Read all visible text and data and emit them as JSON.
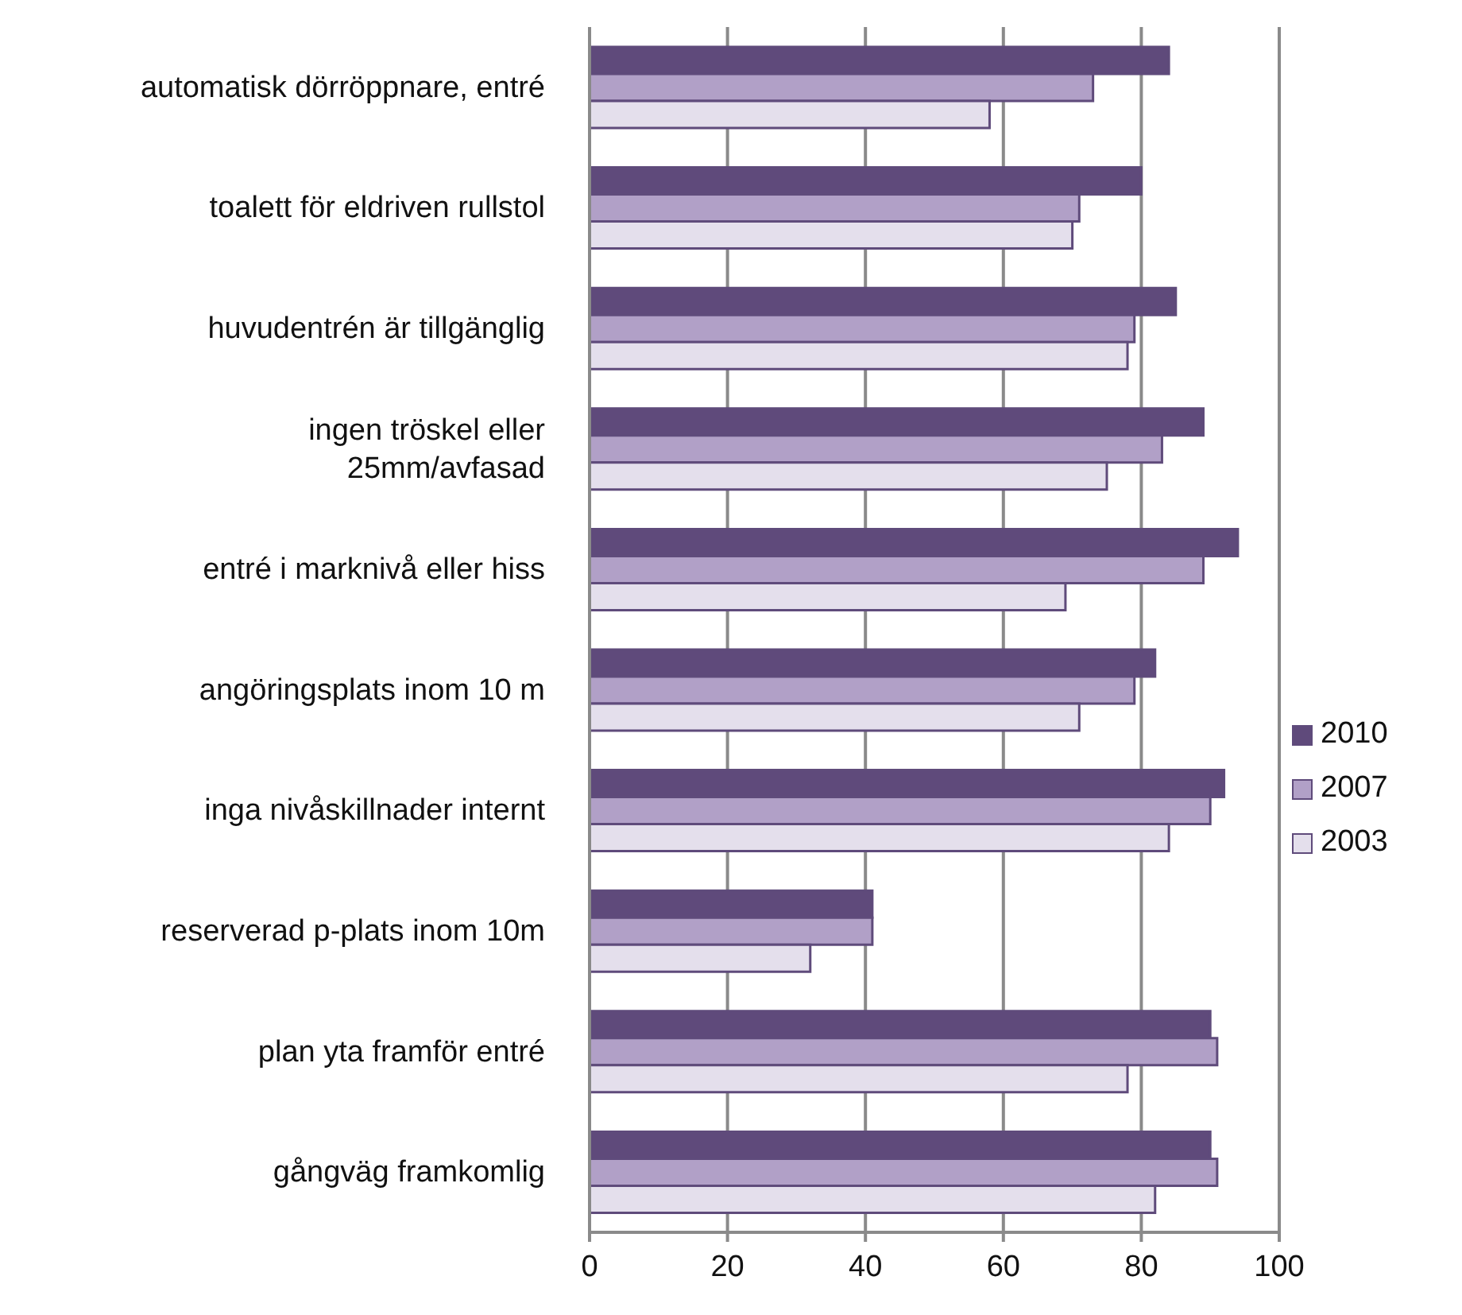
{
  "chart_data": {
    "type": "bar",
    "orientation": "horizontal",
    "categories": [
      "automatisk dörröppnare, entré",
      "toalett för eldriven rullstol",
      "huvudentrén är tillgänglig",
      "ingen tröskel eller\n25mm/avfasad",
      "entré i marknivå eller hiss",
      "angöringsplats inom 10 m",
      "inga nivåskillnader internt",
      "reserverad p-plats inom 10m",
      "plan yta framför entré",
      "gångväg framkomlig"
    ],
    "series": [
      {
        "name": "2010",
        "color": "#5f4a7b",
        "values": [
          84,
          80,
          85,
          89,
          94,
          82,
          92,
          41,
          90,
          90
        ]
      },
      {
        "name": "2007",
        "color": "#b1a0c7",
        "values": [
          73,
          71,
          79,
          83,
          89,
          79,
          90,
          41,
          91,
          91
        ]
      },
      {
        "name": "2003",
        "color": "#e4dfec",
        "values": [
          58,
          70,
          78,
          75,
          69,
          71,
          84,
          32,
          78,
          82
        ]
      }
    ],
    "xlim": [
      0,
      100
    ],
    "xticks": [
      0,
      20,
      40,
      60,
      80,
      100
    ],
    "grid": "x",
    "legend": "right"
  }
}
